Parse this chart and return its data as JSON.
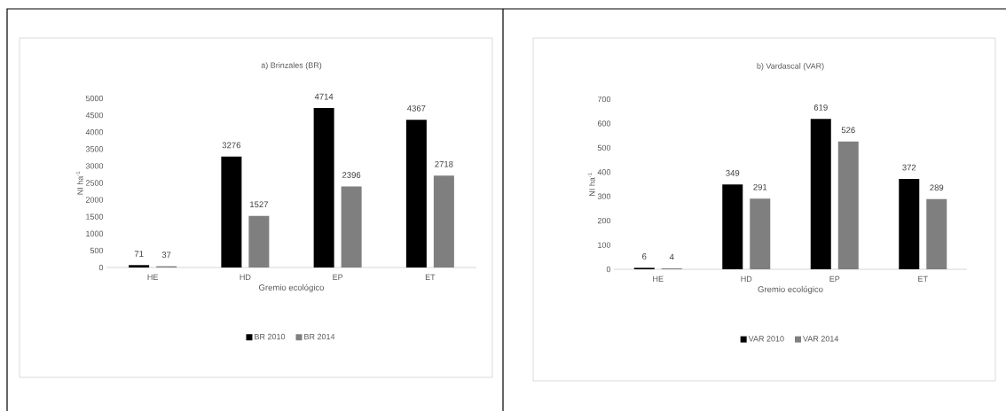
{
  "chart_data": [
    {
      "type": "bar",
      "title": "a) Brinzales (BR)",
      "xlabel": "Gremio ecológico",
      "ylabel": "NI ha$^{-1}$",
      "categories": [
        "HE",
        "HD",
        "EP",
        "ET"
      ],
      "series": [
        {
          "name": "BR 2010",
          "color": "#000000",
          "values": [
            71,
            3276,
            4714,
            4367
          ]
        },
        {
          "name": "BR 2014",
          "color": "#7f7f7f",
          "values": [
            37,
            1527,
            2396,
            2718
          ]
        }
      ],
      "ylim": [
        0,
        5000
      ],
      "yticks": [
        0,
        500,
        1000,
        1500,
        2000,
        2500,
        3000,
        3500,
        4000,
        4500,
        5000
      ],
      "data_labels": true,
      "legend": "bottom"
    },
    {
      "type": "bar",
      "title": "b) Vardascal (VAR)",
      "xlabel": "Gremio ecológico",
      "ylabel": "NI ha$^{-1}$",
      "categories": [
        "HE",
        "HD",
        "EP",
        "ET"
      ],
      "series": [
        {
          "name": "VAR 2010",
          "color": "#000000",
          "values": [
            6,
            349,
            619,
            372
          ]
        },
        {
          "name": "VAR 2014",
          "color": "#7f7f7f",
          "values": [
            4,
            291,
            526,
            289
          ]
        }
      ],
      "ylim": [
        0,
        700
      ],
      "yticks": [
        0,
        100,
        200,
        300,
        400,
        500,
        600,
        700
      ],
      "data_labels": true,
      "legend": "bottom"
    }
  ]
}
